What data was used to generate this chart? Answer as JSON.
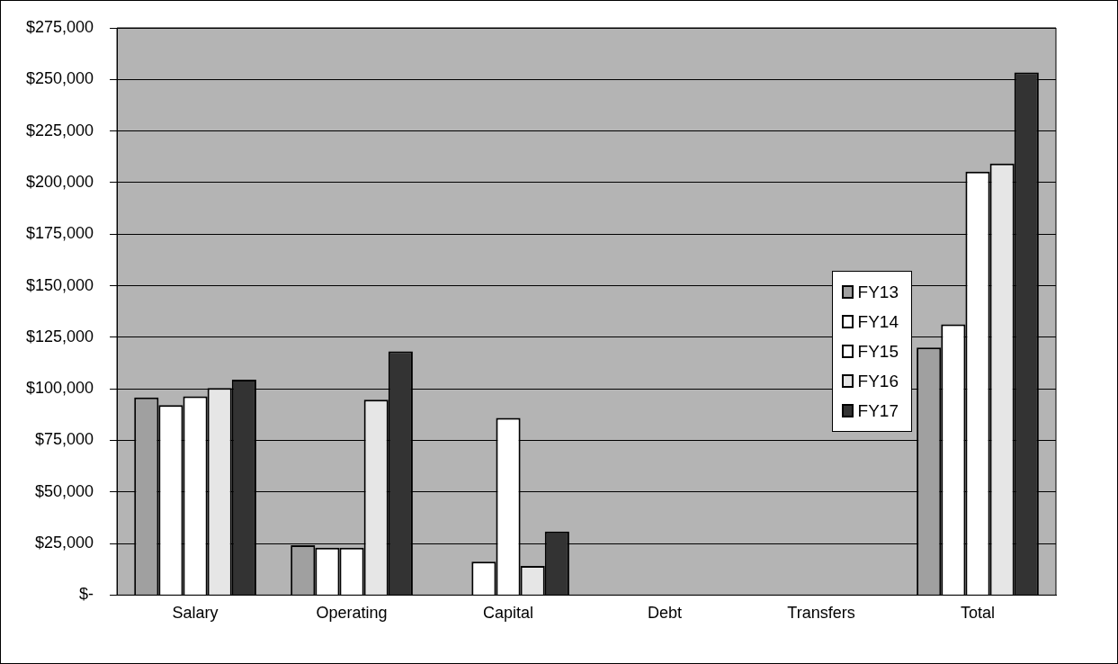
{
  "chart_data": {
    "type": "bar",
    "categories": [
      "Salary",
      "Operating",
      "Capital",
      "Debt",
      "Transfers",
      "Total"
    ],
    "series": [
      {
        "name": "FY13",
        "color": "#a0a0a0",
        "values": [
          95800,
          24200,
          null,
          null,
          null,
          120000
        ]
      },
      {
        "name": "FY14",
        "color": "#ffffff",
        "values": [
          92100,
          23000,
          16200,
          null,
          null,
          131300
        ]
      },
      {
        "name": "FY15",
        "color": "#ffffff",
        "values": [
          96400,
          23000,
          85900,
          null,
          null,
          205300
        ]
      },
      {
        "name": "FY16",
        "color": "#e6e6e6",
        "values": [
          100400,
          94700,
          14100,
          null,
          null,
          209200
        ]
      },
      {
        "name": "FY17",
        "color": "#333333",
        "values": [
          104400,
          118200,
          30800,
          null,
          null,
          253400
        ]
      }
    ],
    "ylim": [
      0,
      275000
    ],
    "yticks": [
      {
        "value": 0,
        "label": "$-"
      },
      {
        "value": 25000,
        "label": "$25,000"
      },
      {
        "value": 50000,
        "label": "$50,000"
      },
      {
        "value": 75000,
        "label": "$75,000"
      },
      {
        "value": 100000,
        "label": "$100,000"
      },
      {
        "value": 125000,
        "label": "$125,000"
      },
      {
        "value": 150000,
        "label": "$150,000"
      },
      {
        "value": 175000,
        "label": "$175,000"
      },
      {
        "value": 200000,
        "label": "$200,000"
      },
      {
        "value": 225000,
        "label": "$225,000"
      },
      {
        "value": 250000,
        "label": "$250,000"
      },
      {
        "value": 275000,
        "label": "$275,000"
      }
    ],
    "grid": "y",
    "legend": "right"
  }
}
